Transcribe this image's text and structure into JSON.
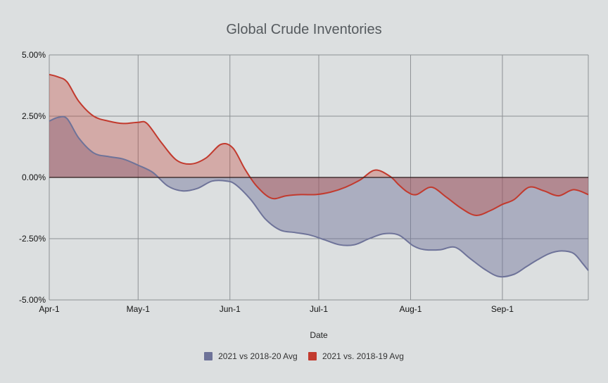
{
  "chart_data": {
    "type": "area",
    "title": "Global Crude Inventories",
    "xlabel": "Date",
    "ylabel": "",
    "x_ticks": [
      {
        "label": "Apr-1",
        "day": 0
      },
      {
        "label": "May-1",
        "day": 30
      },
      {
        "label": "Jun-1",
        "day": 61
      },
      {
        "label": "Jul-1",
        "day": 91
      },
      {
        "label": "Aug-1",
        "day": 122
      },
      {
        "label": "Sep-1",
        "day": 153
      }
    ],
    "y_ticks": [
      "5.00%",
      "2.50%",
      "0.00%",
      "-2.50%",
      "-5.00%"
    ],
    "ylim": [
      -5,
      5
    ],
    "xlim": [
      "Apr-1",
      "Sep-30"
    ],
    "grid": true,
    "legend_position": "bottom",
    "series": [
      {
        "name": "2021 vs 2018-20 Avg",
        "color": "#6e7399",
        "x": [
          "Apr-1",
          "Apr-4",
          "Apr-7",
          "Apr-11",
          "Apr-16",
          "Apr-21",
          "Apr-26",
          "May-1",
          "May-6",
          "May-11",
          "May-16",
          "May-21",
          "May-26",
          "May-31",
          "Jun-3",
          "Jun-8",
          "Jun-13",
          "Jun-18",
          "Jun-23",
          "Jun-28",
          "Jul-3",
          "Jul-8",
          "Jul-13",
          "Jul-18",
          "Jul-23",
          "Jul-28",
          "Aug-2",
          "Aug-6",
          "Aug-11",
          "Aug-16",
          "Aug-21",
          "Aug-26",
          "Aug-31",
          "Sep-5",
          "Sep-9",
          "Sep-13",
          "Sep-17",
          "Sep-21",
          "Sep-25",
          "Sep-28",
          "Sep-30"
        ],
        "values": [
          2.3,
          2.45,
          2.4,
          1.6,
          1.0,
          0.85,
          0.75,
          0.5,
          0.2,
          -0.35,
          -0.55,
          -0.45,
          -0.15,
          -0.15,
          -0.3,
          -0.9,
          -1.7,
          -2.15,
          -2.25,
          -2.35,
          -2.55,
          -2.75,
          -2.75,
          -2.5,
          -2.3,
          -2.35,
          -2.8,
          -2.95,
          -2.95,
          -2.85,
          -3.3,
          -3.75,
          -4.05,
          -3.95,
          -3.65,
          -3.35,
          -3.1,
          -3.0,
          -3.1,
          -3.5,
          -3.8
        ]
      },
      {
        "name": "2021 vs. 2018-19 Avg",
        "color": "#c23a2e",
        "x": [
          "Apr-1",
          "Apr-4",
          "Apr-7",
          "Apr-11",
          "Apr-16",
          "Apr-21",
          "Apr-26",
          "May-1",
          "May-4",
          "May-9",
          "May-14",
          "May-19",
          "May-24",
          "May-29",
          "Jun-2",
          "Jun-6",
          "Jun-10",
          "Jun-15",
          "Jun-20",
          "Jun-25",
          "Jun-30",
          "Jul-5",
          "Jul-10",
          "Jul-15",
          "Jul-20",
          "Jul-25",
          "Jul-28",
          "Jul-31",
          "Aug-3",
          "Aug-8",
          "Aug-13",
          "Aug-18",
          "Aug-23",
          "Aug-28",
          "Sep-1",
          "Sep-5",
          "Sep-10",
          "Sep-15",
          "Sep-20",
          "Sep-25",
          "Sep-30"
        ],
        "values": [
          4.2,
          4.1,
          3.9,
          3.1,
          2.5,
          2.3,
          2.2,
          2.25,
          2.2,
          1.4,
          0.7,
          0.55,
          0.8,
          1.35,
          1.2,
          0.35,
          -0.35,
          -0.85,
          -0.75,
          -0.7,
          -0.7,
          -0.6,
          -0.4,
          -0.1,
          0.3,
          0.05,
          -0.3,
          -0.6,
          -0.7,
          -0.4,
          -0.8,
          -1.25,
          -1.55,
          -1.35,
          -1.1,
          -0.9,
          -0.4,
          -0.55,
          -0.75,
          -0.5,
          -0.7
        ]
      }
    ]
  }
}
